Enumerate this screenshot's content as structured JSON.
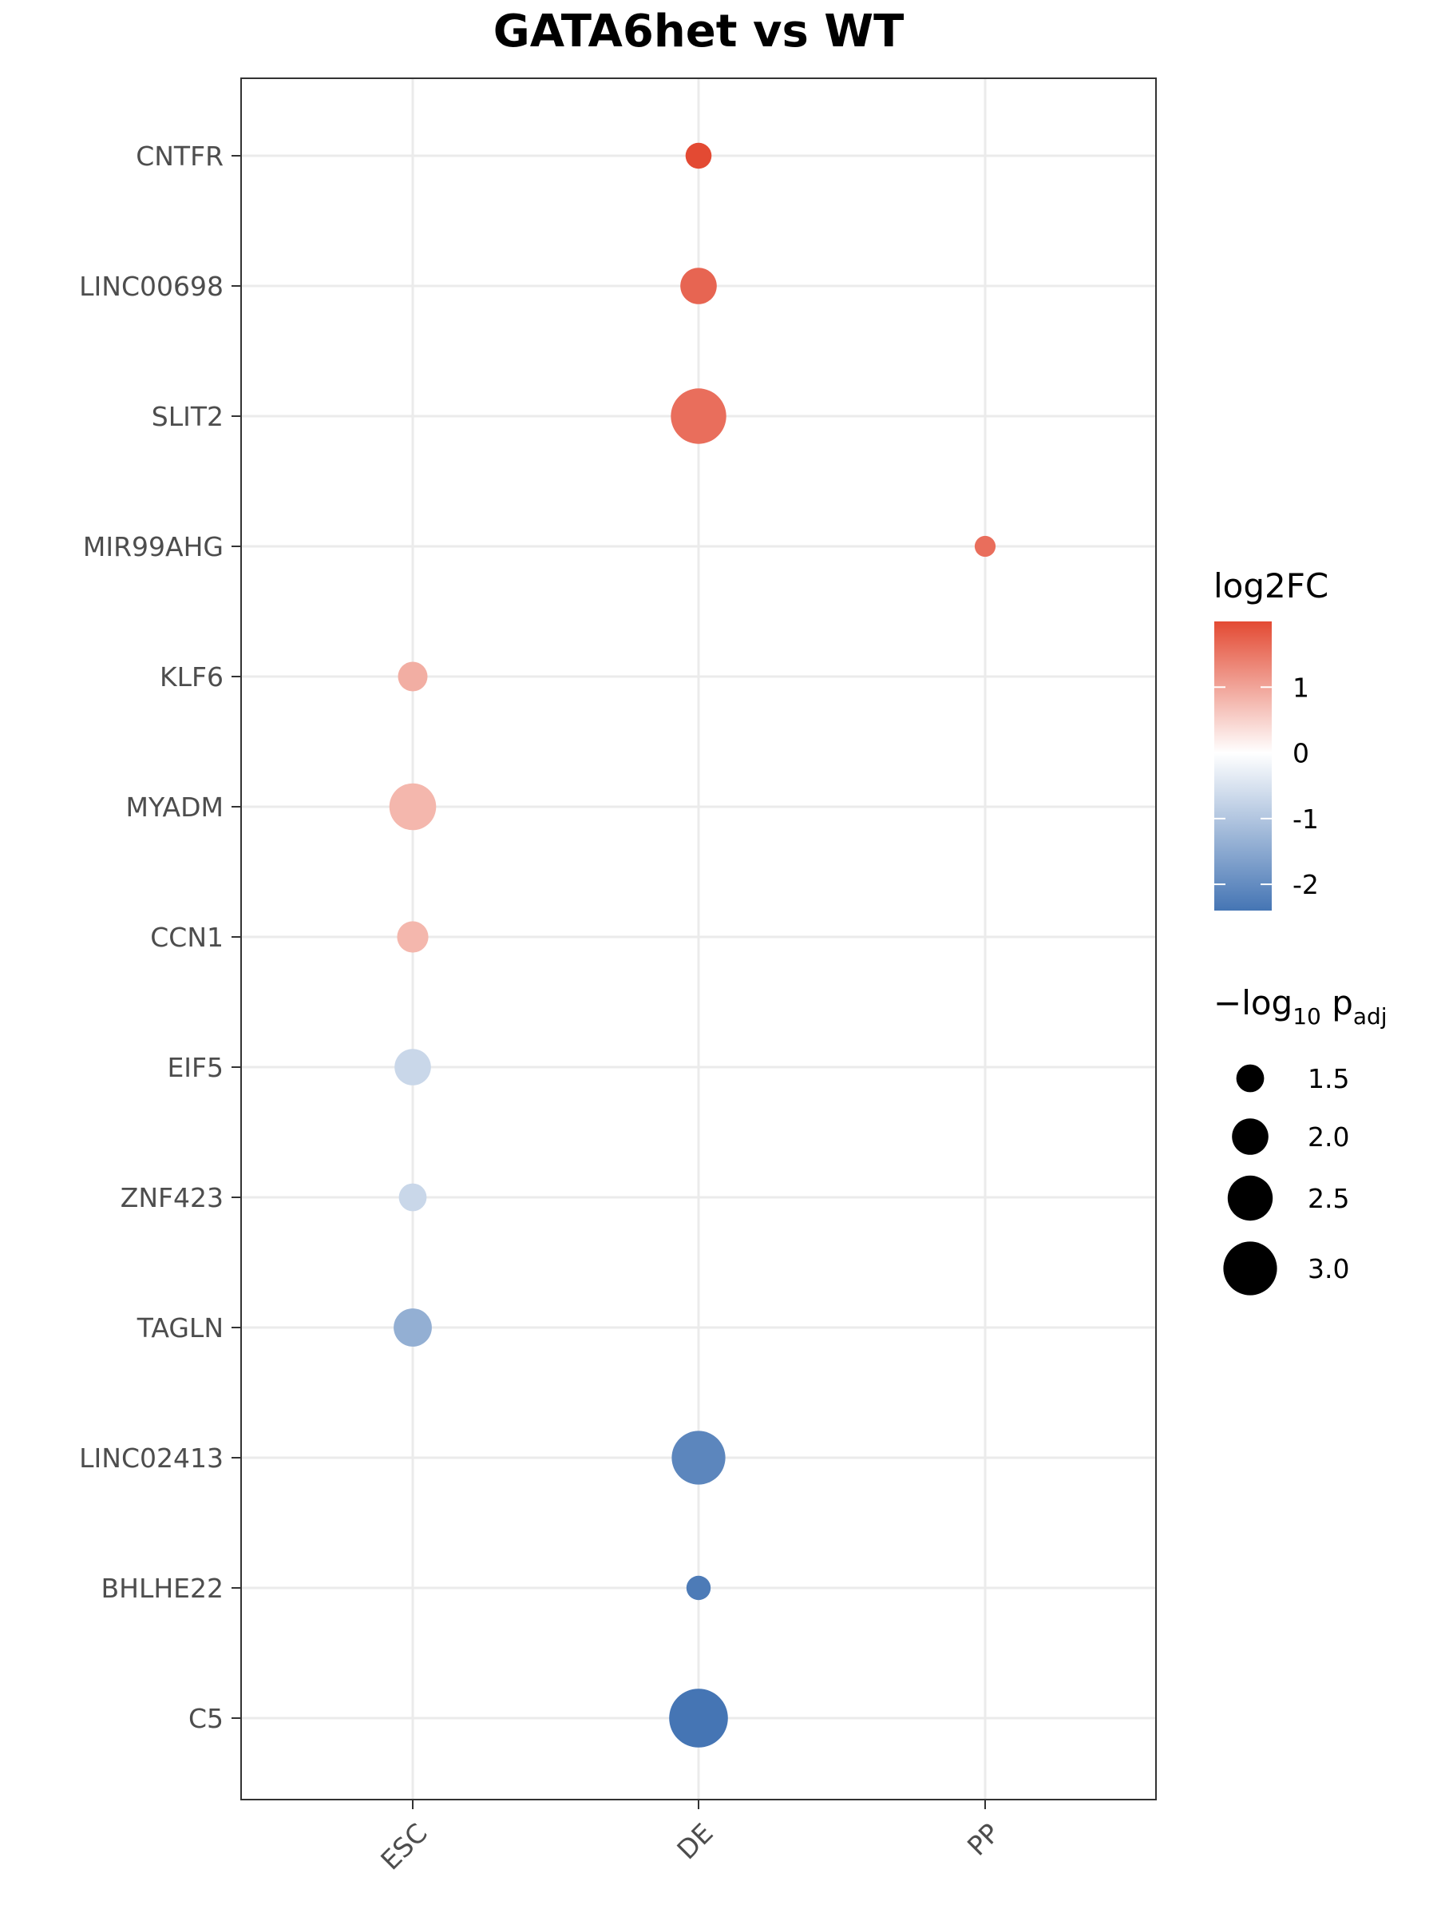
{
  "chart_data": {
    "type": "scatter",
    "title": "GATA6het vs WT",
    "xlabel": "",
    "ylabel": "",
    "categories_x": [
      "ESC",
      "DE",
      "PP"
    ],
    "categories_y": [
      "CNTFR",
      "LINC00698",
      "SLIT2",
      "MIR99AHG",
      "KLF6",
      "MYADM",
      "CCN1",
      "EIF5",
      "ZNF423",
      "TAGLN",
      "LINC02413",
      "BHLHE22",
      "C5"
    ],
    "points": [
      {
        "gene": "CNTFR",
        "stage": "DE",
        "log2fc": 2.0,
        "neglog10padj": 1.4
      },
      {
        "gene": "LINC00698",
        "stage": "DE",
        "log2fc": 1.7,
        "neglog10padj": 2.0
      },
      {
        "gene": "SLIT2",
        "stage": "DE",
        "log2fc": 1.6,
        "neglog10padj": 3.1
      },
      {
        "gene": "MIR99AHG",
        "stage": "PP",
        "log2fc": 1.6,
        "neglog10padj": 1.1
      },
      {
        "gene": "KLF6",
        "stage": "ESC",
        "log2fc": 0.9,
        "neglog10padj": 1.6
      },
      {
        "gene": "MYADM",
        "stage": "ESC",
        "log2fc": 0.8,
        "neglog10padj": 2.6
      },
      {
        "gene": "CCN1",
        "stage": "ESC",
        "log2fc": 0.8,
        "neglog10padj": 1.7
      },
      {
        "gene": "EIF5",
        "stage": "ESC",
        "log2fc": -0.7,
        "neglog10padj": 2.0
      },
      {
        "gene": "ZNF423",
        "stage": "ESC",
        "log2fc": -0.7,
        "neglog10padj": 1.5
      },
      {
        "gene": "TAGLN",
        "stage": "ESC",
        "log2fc": -1.4,
        "neglog10padj": 2.1
      },
      {
        "gene": "LINC02413",
        "stage": "DE",
        "log2fc": -2.1,
        "neglog10padj": 3.0
      },
      {
        "gene": "BHLHE22",
        "stage": "DE",
        "log2fc": -2.3,
        "neglog10padj": 1.3
      },
      {
        "gene": "C5",
        "stage": "DE",
        "log2fc": -2.4,
        "neglog10padj": 3.3
      }
    ],
    "color_legend": {
      "title": "log2FC",
      "ticks": [
        1,
        0,
        -1,
        -2
      ],
      "tick_labels": [
        "1",
        "0",
        "-1",
        "-2"
      ],
      "range": [
        -2.4,
        2.0
      ],
      "low_color": "#4575b4",
      "mid_color": "#ffffff",
      "high_color": "#e34a33"
    },
    "size_legend": {
      "title": "−log",
      "title_subscript": "10",
      "title_p": " p",
      "title_p_subscript": "adj",
      "values": [
        1.5,
        2.0,
        2.5,
        3.0
      ],
      "labels": [
        "1.5",
        "2.0",
        "2.5",
        "3.0"
      ]
    },
    "grid": true,
    "legend_position": "right"
  }
}
